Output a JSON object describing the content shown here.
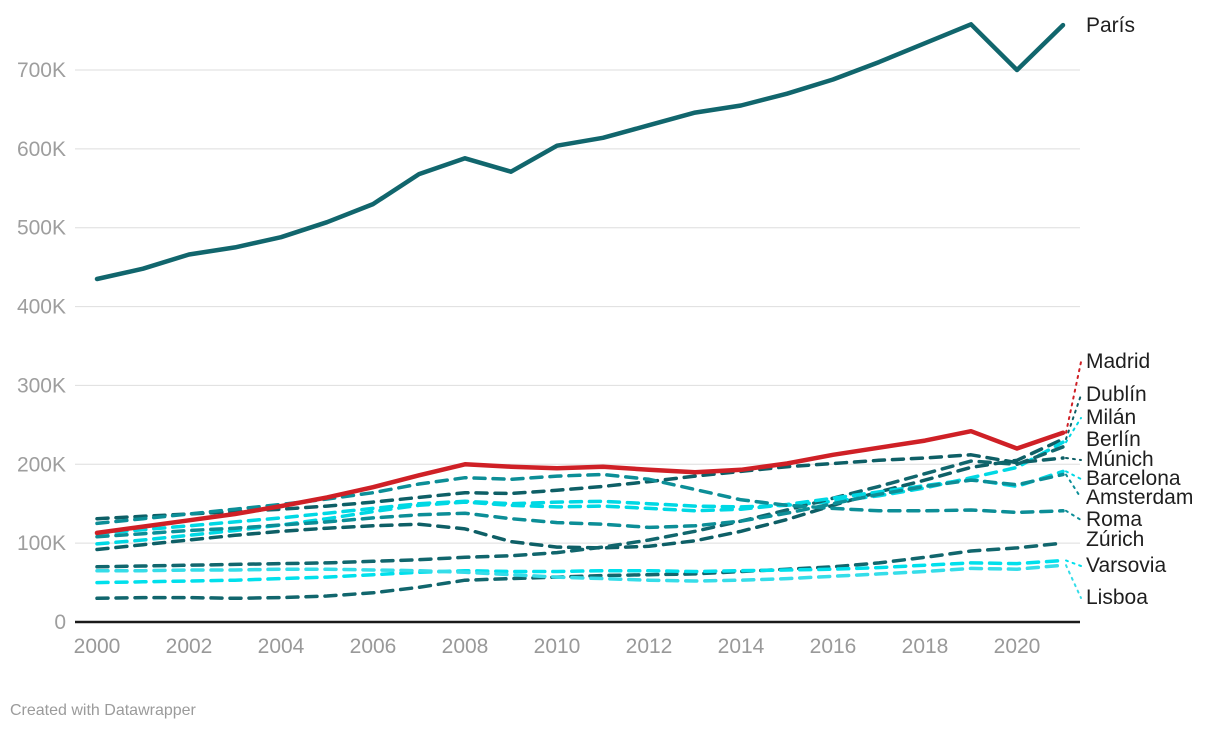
{
  "footer": {
    "credit": "Created with Datawrapper"
  },
  "chart_data": {
    "type": "line",
    "title": "",
    "xlabel": "",
    "ylabel": "",
    "x": [
      2000,
      2001,
      2002,
      2003,
      2004,
      2005,
      2006,
      2007,
      2008,
      2009,
      2010,
      2011,
      2012,
      2013,
      2014,
      2015,
      2016,
      2017,
      2018,
      2019,
      2020,
      2021
    ],
    "x_tick_labels": [
      "2000",
      "2002",
      "2004",
      "2006",
      "2008",
      "2010",
      "2012",
      "2014",
      "2016",
      "2018",
      "2020"
    ],
    "x_tick_years": [
      2000,
      2002,
      2004,
      2006,
      2008,
      2010,
      2012,
      2014,
      2016,
      2018,
      2020
    ],
    "y_tick_labels": [
      "0",
      "100K",
      "200K",
      "300K",
      "400K",
      "500K",
      "600K",
      "700K"
    ],
    "y_tick_values": [
      0,
      100000,
      200000,
      300000,
      400000,
      500000,
      600000,
      700000
    ],
    "ylim": [
      0,
      770000
    ],
    "grid": true,
    "legend_position": "right-direct-labels",
    "colors": {
      "dark_teal": "#11666d",
      "medium_teal": "#0c8e97",
      "cyan": "#00d8e4",
      "light_cyan": "#35dde9",
      "red": "#cf2026",
      "grid": "#dedede",
      "axis": "#1a1a1a",
      "tick_text": "#9e9e9e",
      "label_text": "#1f1f1f"
    },
    "series": [
      {
        "name": "París",
        "color": "#11666d",
        "style": "solid",
        "width": 4.5,
        "values": [
          435000,
          448000,
          466000,
          475000,
          488000,
          507000,
          530000,
          568000,
          588000,
          571000,
          604000,
          614000,
          630000,
          646000,
          655000,
          670000,
          688000,
          710000,
          734000,
          758000,
          700000,
          757000
        ]
      },
      {
        "name": "Madrid",
        "color": "#cf2026",
        "style": "solid",
        "width": 4.5,
        "values": [
          113000,
          121000,
          129000,
          137000,
          147000,
          158000,
          171000,
          186000,
          200000,
          197000,
          195000,
          197000,
          193000,
          190000,
          193000,
          201000,
          212000,
          221000,
          230000,
          242000,
          220000,
          240000
        ]
      },
      {
        "name": "Dublín",
        "color": "#0e5f66",
        "style": "dashed",
        "width": 3.5,
        "values": [
          92000,
          98000,
          104000,
          110000,
          115000,
          119000,
          122000,
          124000,
          118000,
          102000,
          95000,
          94000,
          96000,
          103000,
          115000,
          130000,
          148000,
          165000,
          180000,
          196000,
          205000,
          232000
        ]
      },
      {
        "name": "Milán",
        "color": "#00d8e4",
        "style": "dashed",
        "width": 3.5,
        "values": [
          112000,
          117000,
          122000,
          127000,
          132000,
          138000,
          144000,
          150000,
          153000,
          150000,
          152000,
          153000,
          150000,
          147000,
          146000,
          148000,
          153000,
          160000,
          170000,
          183000,
          196000,
          228000
        ]
      },
      {
        "name": "Berlín",
        "color": "#11666d",
        "style": "dashed",
        "width": 3.5,
        "values": [
          70000,
          71000,
          72000,
          73000,
          74000,
          75000,
          77000,
          79000,
          82000,
          84000,
          88000,
          95000,
          104000,
          115000,
          128000,
          142000,
          157000,
          172000,
          188000,
          204000,
          200000,
          222000
        ]
      },
      {
        "name": "Múnich",
        "color": "#0e5f66",
        "style": "dashed",
        "width": 3.5,
        "values": [
          131000,
          134000,
          137000,
          140000,
          143000,
          147000,
          152000,
          158000,
          164000,
          163000,
          167000,
          172000,
          178000,
          185000,
          191000,
          197000,
          201000,
          205000,
          208000,
          212000,
          202000,
          208000
        ]
      },
      {
        "name": "Barcelona",
        "color": "#00d8e4",
        "style": "dashed",
        "width": 3.5,
        "values": [
          99000,
          104000,
          110000,
          116000,
          123000,
          131000,
          140000,
          148000,
          152000,
          148000,
          146000,
          147000,
          144000,
          141000,
          143000,
          149000,
          157000,
          165000,
          173000,
          181000,
          172000,
          191000
        ]
      },
      {
        "name": "Amsterdam",
        "color": "#0c8e97",
        "style": "dashed",
        "width": 3.5,
        "values": [
          108000,
          112000,
          116000,
          119000,
          123000,
          127000,
          132000,
          136000,
          138000,
          131000,
          126000,
          124000,
          120000,
          122000,
          128000,
          138000,
          150000,
          162000,
          172000,
          180000,
          174000,
          187000
        ]
      },
      {
        "name": "Roma",
        "color": "#0c8e97",
        "style": "dashed",
        "width": 3.5,
        "values": [
          125000,
          131000,
          137000,
          143000,
          149000,
          156000,
          164000,
          175000,
          183000,
          181000,
          185000,
          187000,
          181000,
          168000,
          155000,
          148000,
          144000,
          141000,
          141000,
          142000,
          139000,
          141000
        ]
      },
      {
        "name": "Zúrich",
        "color": "#11666d",
        "style": "dashed",
        "width": 3.5,
        "values": [
          30000,
          31000,
          31000,
          30000,
          31000,
          33000,
          37000,
          44000,
          53000,
          55000,
          57000,
          59000,
          60000,
          61000,
          64000,
          67000,
          70000,
          75000,
          82000,
          90000,
          94000,
          100000
        ]
      },
      {
        "name": "Varsovia",
        "color": "#00e0ec",
        "style": "dashed",
        "width": 3.5,
        "values": [
          50000,
          51000,
          52000,
          53000,
          55000,
          57000,
          60000,
          63000,
          65000,
          64000,
          64000,
          65000,
          65000,
          64000,
          65000,
          66000,
          67000,
          69000,
          72000,
          75000,
          74000,
          78000
        ]
      },
      {
        "name": "Lisboa",
        "color": "#35dde9",
        "style": "dashed",
        "width": 3.5,
        "values": [
          65000,
          65000,
          66000,
          66000,
          67000,
          67000,
          66000,
          65000,
          63000,
          60000,
          57000,
          55000,
          53000,
          52000,
          53000,
          55000,
          58000,
          61000,
          64000,
          68000,
          67000,
          72000
        ]
      }
    ]
  }
}
